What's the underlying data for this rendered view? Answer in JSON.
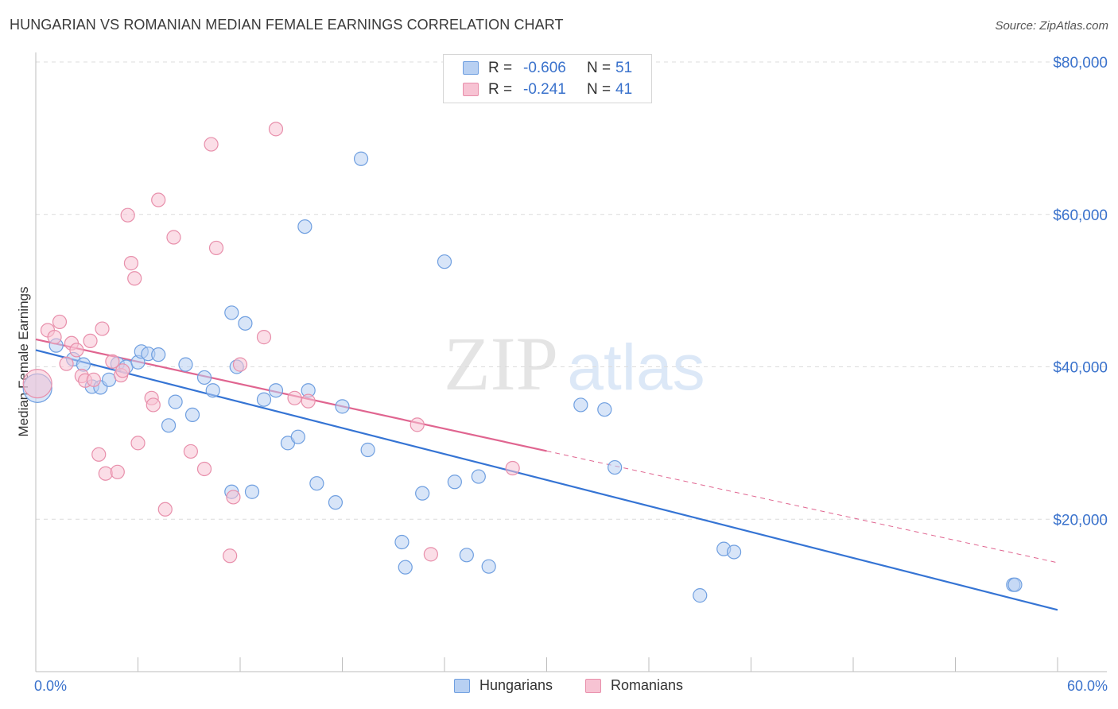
{
  "title": "HUNGARIAN VS ROMANIAN MEDIAN FEMALE EARNINGS CORRELATION CHART",
  "source": "Source: ZipAtlas.com",
  "watermark": {
    "zip": "ZIP",
    "atlas": "atlas"
  },
  "legend_top": [
    {
      "r_label": "R =",
      "r_value": "-0.606",
      "n_label": "N =",
      "n_value": "51",
      "fill": "#b8d0f2",
      "stroke": "#6f9fe0"
    },
    {
      "r_label": "R =",
      "r_value": "-0.241",
      "n_label": "N =",
      "n_value": "41",
      "fill": "#f7c3d3",
      "stroke": "#e88fab"
    }
  ],
  "chart_data": {
    "type": "scatter",
    "ylabel": "Median Female Earnings",
    "x_tick_labels": [
      "0.0%",
      "60.0%"
    ],
    "y_tick_labels": [
      "$20,000",
      "$40,000",
      "$60,000",
      "$80,000"
    ],
    "y_ticks": [
      20000,
      40000,
      60000,
      80000
    ],
    "xlim": [
      0,
      60
    ],
    "ylim": [
      0,
      82000
    ],
    "grid": true,
    "legend_position": "bottom-center",
    "series": [
      {
        "name": "Hungarians",
        "color": "#6f9fe0",
        "fill": "#b8d0f2",
        "line_color": "#3574d4",
        "trend": {
          "x0": 0,
          "y0": 42200,
          "x1": 60,
          "y1": 8100,
          "solid_until": 60
        },
        "points": [
          [
            0.1,
            37200
          ],
          [
            1.2,
            42800
          ],
          [
            2.2,
            41000
          ],
          [
            2.8,
            40300
          ],
          [
            3.3,
            37400
          ],
          [
            3.8,
            37300
          ],
          [
            4.3,
            38300
          ],
          [
            4.8,
            40400
          ],
          [
            5.3,
            40000
          ],
          [
            6.0,
            40600
          ],
          [
            6.2,
            42000
          ],
          [
            6.6,
            41700
          ],
          [
            7.2,
            41600
          ],
          [
            7.8,
            32300
          ],
          [
            8.2,
            35400
          ],
          [
            8.8,
            40300
          ],
          [
            9.2,
            33700
          ],
          [
            9.9,
            38600
          ],
          [
            10.4,
            36900
          ],
          [
            11.5,
            47100
          ],
          [
            11.5,
            23600
          ],
          [
            11.8,
            40000
          ],
          [
            12.3,
            45700
          ],
          [
            12.7,
            23600
          ],
          [
            13.4,
            35700
          ],
          [
            14.1,
            36900
          ],
          [
            14.8,
            30000
          ],
          [
            15.4,
            30800
          ],
          [
            15.8,
            58400
          ],
          [
            16.0,
            36900
          ],
          [
            16.5,
            24700
          ],
          [
            17.6,
            22200
          ],
          [
            18.0,
            34800
          ],
          [
            19.1,
            67300
          ],
          [
            19.5,
            29100
          ],
          [
            21.5,
            17000
          ],
          [
            21.7,
            13700
          ],
          [
            22.7,
            23400
          ],
          [
            24.0,
            53800
          ],
          [
            24.6,
            24900
          ],
          [
            25.3,
            15300
          ],
          [
            26.0,
            25600
          ],
          [
            26.6,
            13800
          ],
          [
            32.0,
            35000
          ],
          [
            33.4,
            34400
          ],
          [
            34.0,
            26800
          ],
          [
            39.0,
            10000
          ],
          [
            40.4,
            16100
          ],
          [
            41.0,
            15700
          ],
          [
            57.4,
            11400
          ],
          [
            57.5,
            11400
          ]
        ]
      },
      {
        "name": "Romanians",
        "color": "#e88fab",
        "fill": "#f7c3d3",
        "line_color": "#e06590",
        "trend": {
          "x0": 0,
          "y0": 43600,
          "x1": 60,
          "y1": 14300,
          "solid_until": 30
        },
        "points": [
          [
            0.1,
            37800
          ],
          [
            0.7,
            44800
          ],
          [
            1.1,
            43900
          ],
          [
            1.4,
            45900
          ],
          [
            1.8,
            40400
          ],
          [
            2.1,
            43100
          ],
          [
            2.4,
            42200
          ],
          [
            2.7,
            38800
          ],
          [
            2.9,
            38200
          ],
          [
            3.2,
            43400
          ],
          [
            3.4,
            38300
          ],
          [
            3.7,
            28500
          ],
          [
            3.9,
            45000
          ],
          [
            4.1,
            26000
          ],
          [
            4.5,
            40700
          ],
          [
            4.8,
            26200
          ],
          [
            5.0,
            38900
          ],
          [
            5.1,
            39500
          ],
          [
            5.4,
            59900
          ],
          [
            5.6,
            53600
          ],
          [
            5.8,
            51600
          ],
          [
            6.0,
            30000
          ],
          [
            6.8,
            35900
          ],
          [
            6.9,
            35000
          ],
          [
            7.2,
            61900
          ],
          [
            7.6,
            21300
          ],
          [
            8.1,
            57000
          ],
          [
            9.1,
            28900
          ],
          [
            9.9,
            26600
          ],
          [
            10.3,
            69200
          ],
          [
            10.6,
            55600
          ],
          [
            11.4,
            15200
          ],
          [
            11.6,
            22900
          ],
          [
            12.0,
            40300
          ],
          [
            13.4,
            43900
          ],
          [
            14.1,
            71200
          ],
          [
            15.2,
            35900
          ],
          [
            16.0,
            35500
          ],
          [
            22.4,
            32400
          ],
          [
            23.2,
            15400
          ],
          [
            28.0,
            26700
          ]
        ]
      }
    ]
  },
  "bottom_legend": [
    {
      "label": "Hungarians",
      "fill": "#b8d0f2",
      "stroke": "#6f9fe0"
    },
    {
      "label": "Romanians",
      "fill": "#f7c3d3",
      "stroke": "#e88fab"
    }
  ]
}
